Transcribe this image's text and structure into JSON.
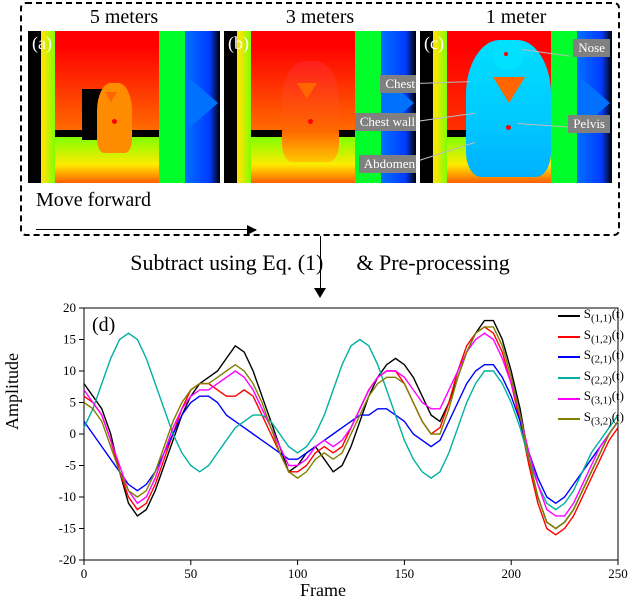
{
  "distances": [
    "5 meters",
    "3 meters",
    "1 meter"
  ],
  "panel_labels": [
    "(a)",
    "(b)",
    "(c)"
  ],
  "annotations": {
    "nose": "Nose",
    "chest": "Chest",
    "chest_wall": "Chest wall",
    "pelvis": "Pelvis",
    "abdomen": "Abdomen"
  },
  "move_forward": "Move forward",
  "mid_caption_left": "Subtract using Eq. (1)",
  "mid_caption_right": "& Pre-processing",
  "chart": {
    "panel_label": "(d)",
    "xlabel": "Frame",
    "ylabel": "Amplitude",
    "xlim": [
      0,
      250
    ],
    "ylim": [
      -20,
      20
    ],
    "xtick_step": 50,
    "ytick_step": 5,
    "tick_fontsize": 13,
    "axis_color": "#000000",
    "background": "#ffffff",
    "series": [
      {
        "name": "S_(1,1)(t)",
        "label_html": "S<sub>(1,1)</sub>(t)",
        "color": "#000000",
        "y": [
          8,
          6,
          4,
          0,
          -6,
          -11,
          -13,
          -12,
          -9,
          -5,
          -1,
          3,
          6,
          8,
          9,
          10,
          12,
          14,
          13,
          10,
          6,
          2,
          -2,
          -6,
          -5,
          -3,
          -2,
          -4,
          -6,
          -5,
          -2,
          2,
          6,
          9,
          11,
          12,
          11,
          9,
          6,
          3,
          2,
          5,
          9,
          13,
          16,
          18,
          18,
          15,
          10,
          4,
          -4,
          -10,
          -14,
          -15,
          -14,
          -12,
          -9,
          -6,
          -3,
          0,
          2
        ]
      },
      {
        "name": "S_(1,2)(t)",
        "label_html": "S<sub>(1,2)</sub>(t)",
        "color": "#ff0000",
        "y": [
          6,
          5,
          3,
          -1,
          -6,
          -10,
          -12,
          -11,
          -8,
          -4,
          0,
          4,
          7,
          8,
          8,
          7,
          6,
          6,
          7,
          6,
          3,
          0,
          -3,
          -6,
          -6,
          -5,
          -3,
          -2,
          -3,
          -2,
          1,
          4,
          7,
          9,
          10,
          10,
          8,
          5,
          2,
          0,
          1,
          5,
          10,
          14,
          16,
          17,
          16,
          13,
          8,
          2,
          -5,
          -11,
          -15,
          -16,
          -15,
          -13,
          -10,
          -7,
          -4,
          -1,
          1
        ]
      },
      {
        "name": "S_(2,1)(t)",
        "label_html": "S<sub>(2,1)</sub>(t)",
        "color": "#0000ff",
        "y": [
          2,
          0,
          -2,
          -4,
          -6,
          -8,
          -9,
          -8,
          -6,
          -3,
          0,
          3,
          5,
          6,
          6,
          5,
          3,
          2,
          1,
          0,
          -1,
          -2,
          -3,
          -4,
          -4,
          -3,
          -2,
          -1,
          0,
          1,
          2,
          3,
          3,
          4,
          4,
          3,
          2,
          0,
          -1,
          -2,
          -1,
          2,
          5,
          8,
          10,
          11,
          11,
          9,
          6,
          2,
          -3,
          -7,
          -10,
          -11,
          -10,
          -8,
          -6,
          -4,
          -2,
          0,
          2
        ]
      },
      {
        "name": "S_(2,2)(t)",
        "label_html": "S<sub>(2,2)</sub>(t)",
        "color": "#00b0a0",
        "y": [
          1,
          4,
          8,
          12,
          15,
          16,
          15,
          12,
          8,
          4,
          0,
          -3,
          -5,
          -6,
          -5,
          -3,
          -1,
          1,
          2,
          3,
          3,
          2,
          0,
          -2,
          -3,
          -2,
          0,
          3,
          7,
          11,
          14,
          15,
          14,
          11,
          7,
          3,
          -1,
          -4,
          -6,
          -7,
          -6,
          -3,
          1,
          5,
          8,
          10,
          10,
          8,
          5,
          1,
          -4,
          -8,
          -11,
          -12,
          -11,
          -9,
          -6,
          -3,
          -1,
          1,
          3
        ]
      },
      {
        "name": "S_(3,1)(t)",
        "label_html": "S<sub>(3,1)</sub>(t)",
        "color": "#ff00ff",
        "y": [
          7,
          5,
          3,
          -1,
          -5,
          -9,
          -11,
          -10,
          -7,
          -3,
          1,
          4,
          6,
          7,
          7,
          8,
          9,
          10,
          9,
          7,
          4,
          1,
          -2,
          -5,
          -5,
          -4,
          -2,
          -1,
          -2,
          -1,
          1,
          4,
          7,
          9,
          10,
          10,
          9,
          7,
          5,
          4,
          4,
          7,
          10,
          13,
          15,
          16,
          15,
          12,
          8,
          3,
          -3,
          -8,
          -12,
          -13,
          -13,
          -11,
          -8,
          -5,
          -2,
          0,
          2
        ]
      },
      {
        "name": "S_(3,2)(t)",
        "label_html": "S<sub>(3,2)</sub>(t)",
        "color": "#808000",
        "y": [
          5,
          4,
          2,
          -2,
          -6,
          -9,
          -10,
          -9,
          -6,
          -2,
          2,
          5,
          7,
          8,
          8,
          9,
          10,
          11,
          10,
          8,
          5,
          1,
          -3,
          -6,
          -7,
          -6,
          -4,
          -3,
          -4,
          -3,
          0,
          3,
          6,
          8,
          9,
          9,
          8,
          5,
          2,
          0,
          0,
          4,
          9,
          13,
          16,
          17,
          17,
          14,
          9,
          3,
          -4,
          -10,
          -14,
          -15,
          -14,
          -12,
          -9,
          -6,
          -3,
          0,
          2
        ]
      }
    ]
  }
}
